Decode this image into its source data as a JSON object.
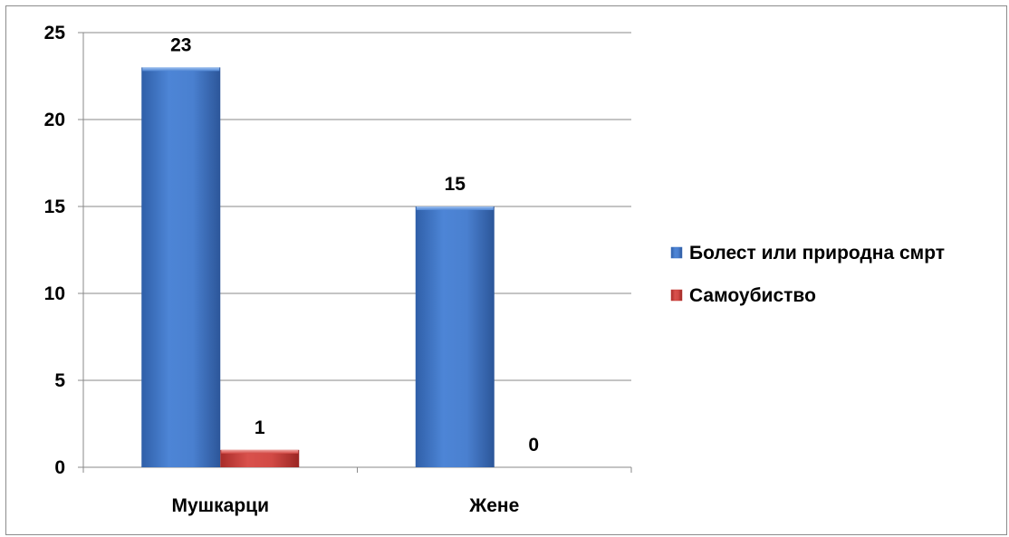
{
  "chart_data": {
    "type": "bar",
    "categories": [
      "Мушкарци",
      "Жене"
    ],
    "series": [
      {
        "name": "Болест или природна смрт",
        "values": [
          23,
          15
        ],
        "color": "#3f73c4"
      },
      {
        "name": "Самоубиство",
        "values": [
          1,
          0
        ],
        "color": "#c43a36"
      }
    ],
    "ylim": [
      0,
      25
    ],
    "yticks": [
      0,
      5,
      10,
      15,
      20,
      25
    ],
    "grid": true,
    "legend_position": "right"
  }
}
